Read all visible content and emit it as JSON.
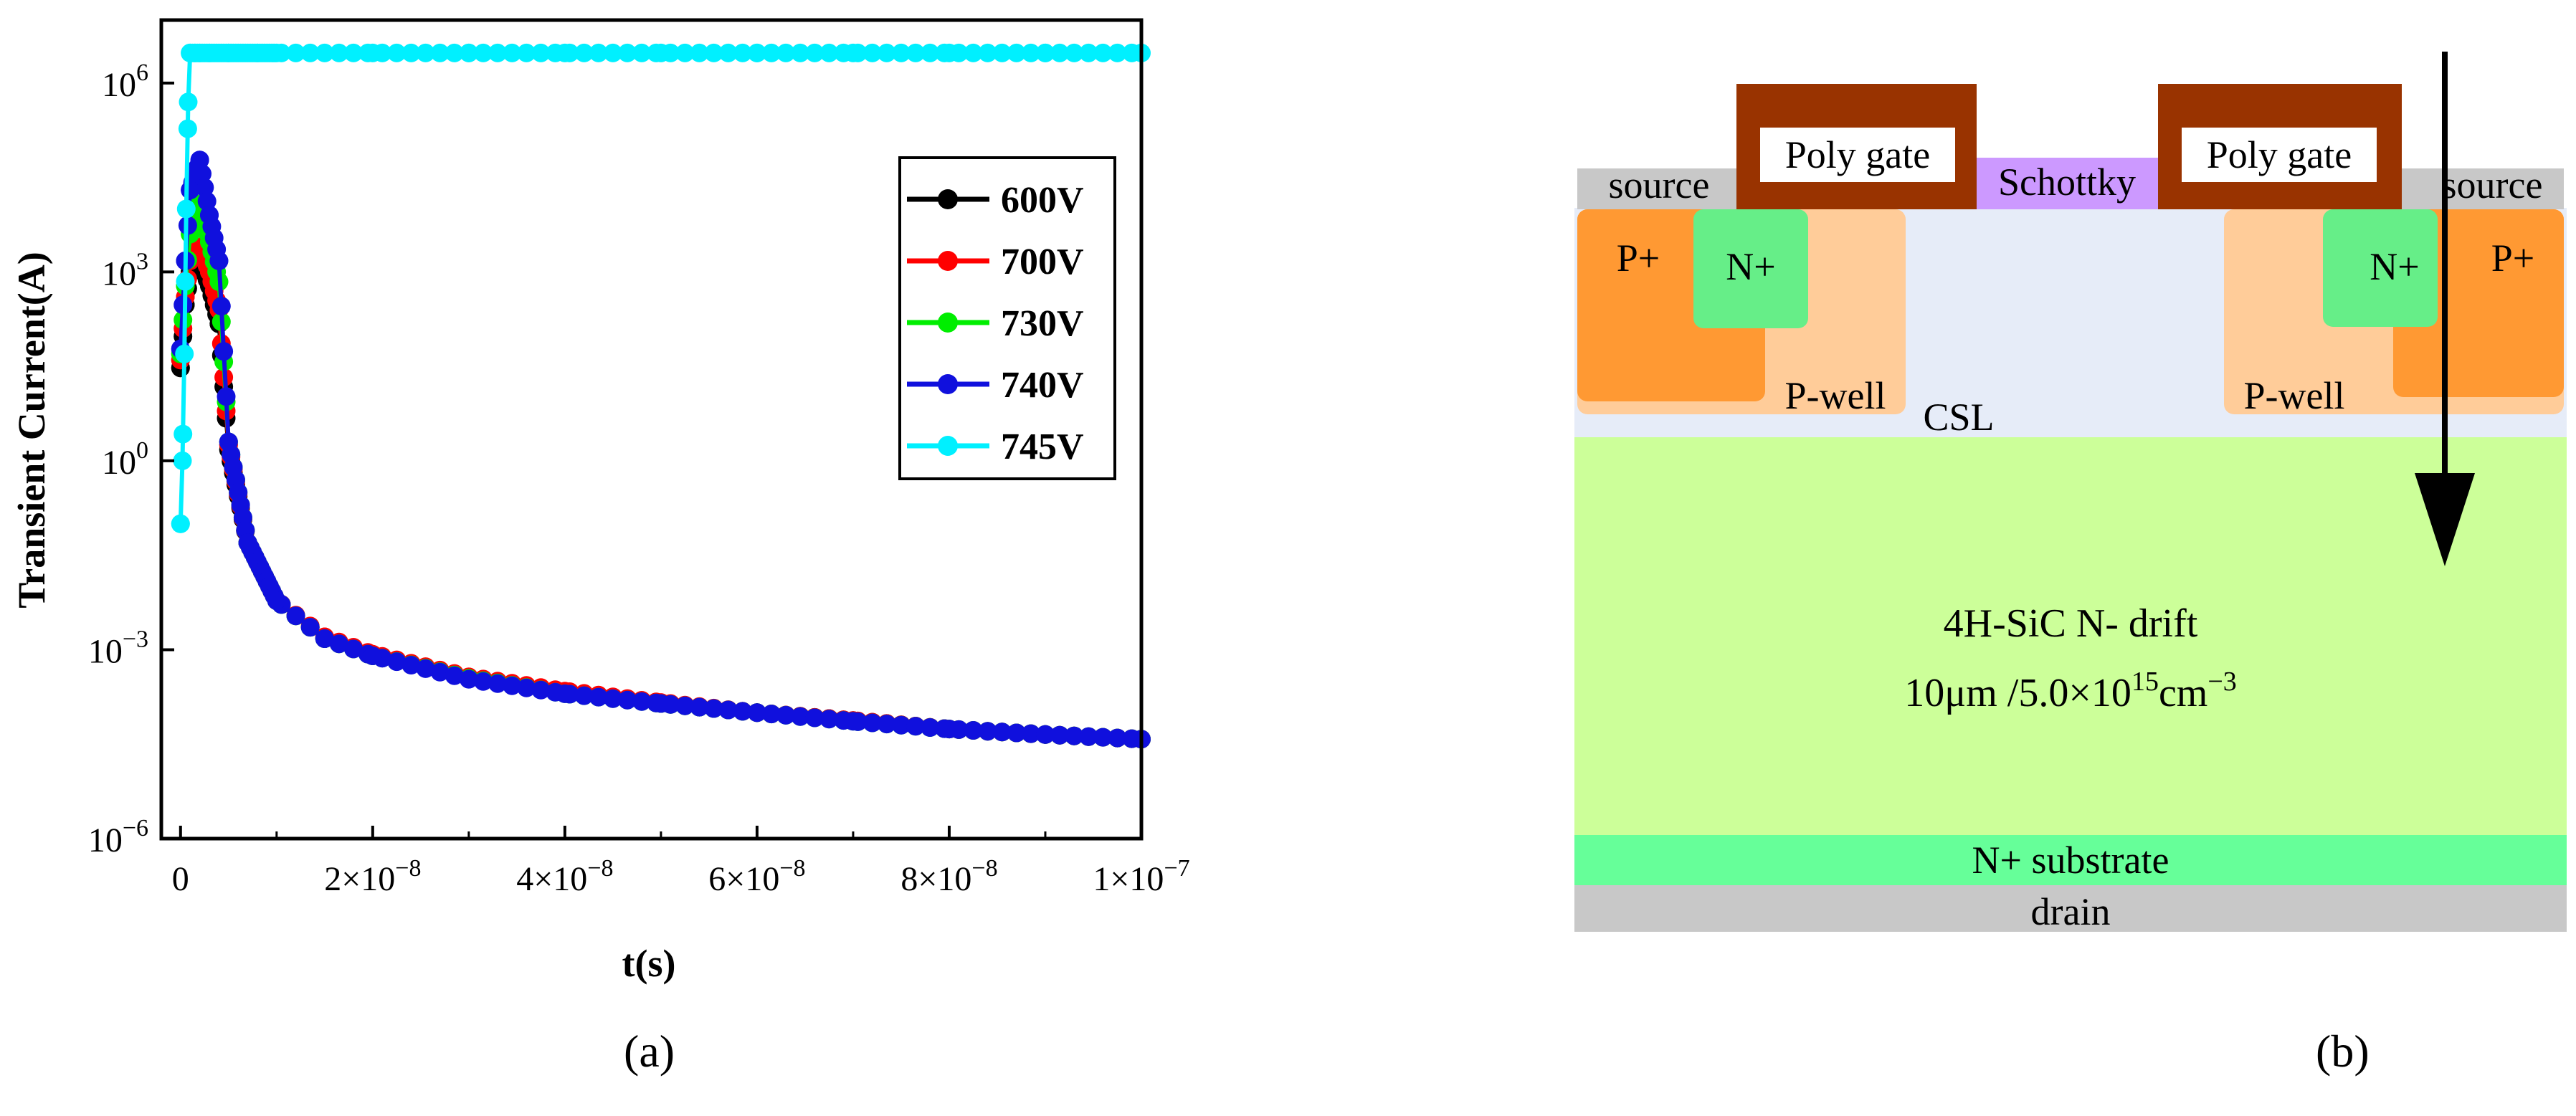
{
  "chart_data": {
    "type": "line",
    "xscale": "linear",
    "yscale": "log",
    "xlim": [
      -2e-09,
      1e-07
    ],
    "ylim": [
      1e-06,
      10000000.0
    ],
    "xlabel": "t(s)",
    "ylabel": "Transient Current(A)",
    "x_ticks": [
      {
        "value": 0,
        "label": "0"
      },
      {
        "value": 2e-08,
        "label": "2×10",
        "exp": "−8"
      },
      {
        "value": 4e-08,
        "label": "4×10",
        "exp": "−8"
      },
      {
        "value": 6e-08,
        "label": "6×10",
        "exp": "−8"
      },
      {
        "value": 8e-08,
        "label": "8×10",
        "exp": "−8"
      },
      {
        "value": 1e-07,
        "label": "1×10",
        "exp": "−7"
      }
    ],
    "y_ticks": [
      {
        "value": 1000000.0,
        "label": "10",
        "exp": "6"
      },
      {
        "value": 1000.0,
        "label": "10",
        "exp": "3"
      },
      {
        "value": 1,
        "label": "10",
        "exp": "0"
      },
      {
        "value": 0.001,
        "label": "10",
        "exp": "−3"
      },
      {
        "value": 1e-06,
        "label": "10",
        "exp": "−6"
      }
    ],
    "legend_position": "top-right",
    "series": [
      {
        "name": "600V",
        "color": "#000000",
        "x": [
          0,
          5e-10,
          1e-09,
          2e-09,
          3e-09,
          4e-09,
          5e-09,
          7e-09,
          1e-08,
          1.5e-08,
          2e-08,
          3e-08,
          4e-08,
          5e-08,
          6e-08,
          7e-08,
          8e-08,
          9e-08,
          1e-07
        ],
        "y": [
          30,
          300,
          1000,
          1500,
          600,
          150,
          1.5,
          0.05,
          0.006,
          0.0015,
          0.0008,
          0.00035,
          0.00021,
          0.00014,
          0.0001,
          7.5e-05,
          5.5e-05,
          4.5e-05,
          3.8e-05
        ]
      },
      {
        "name": "700V",
        "color": "#ff0000",
        "x": [
          0,
          5e-10,
          1e-09,
          2e-09,
          3e-09,
          4e-09,
          5e-09,
          7e-09,
          1e-08,
          1.5e-08,
          2e-08,
          3e-08,
          4e-08,
          5e-08,
          6e-08,
          7e-08,
          8e-08,
          9e-08,
          1e-07
        ],
        "y": [
          40,
          400,
          1500,
          2500,
          1000,
          250,
          1.8,
          0.05,
          0.006,
          0.0016,
          0.00085,
          0.00037,
          0.00022,
          0.000145,
          0.0001,
          7.5e-05,
          5.5e-05,
          4.5e-05,
          3.8e-05
        ]
      },
      {
        "name": "730V",
        "color": "#00ee00",
        "x": [
          0,
          5e-10,
          1e-09,
          2e-09,
          3e-09,
          4e-09,
          5e-09,
          7e-09,
          1e-08,
          1.5e-08,
          2e-08,
          3e-08,
          4e-08,
          5e-08,
          6e-08,
          7e-08,
          8e-08,
          9e-08,
          1e-07
        ],
        "y": [
          50,
          600,
          4000,
          12000,
          3000,
          700,
          2,
          0.05,
          0.006,
          0.0015,
          0.0008,
          0.00035,
          0.0002,
          0.00014,
          0.0001,
          7.3e-05,
          5.5e-05,
          4.5e-05,
          3.8e-05
        ]
      },
      {
        "name": "740V",
        "color": "#1010dd",
        "x": [
          0,
          5e-10,
          1e-09,
          2e-09,
          3e-09,
          4e-09,
          5e-09,
          7e-09,
          1e-08,
          1.5e-08,
          2e-08,
          3e-08,
          4e-08,
          5e-08,
          6e-08,
          7e-08,
          8e-08,
          9e-08,
          1e-07
        ],
        "y": [
          60,
          1500,
          20000,
          60000,
          8000,
          1500,
          2,
          0.05,
          0.006,
          0.0015,
          0.0008,
          0.00034,
          0.0002,
          0.00014,
          0.0001,
          7.3e-05,
          5.5e-05,
          4.5e-05,
          3.8e-05
        ]
      },
      {
        "name": "745V",
        "color": "#00f0ff",
        "x": [
          0,
          2e-10,
          4e-10,
          6e-10,
          8e-10,
          1e-09,
          1.5e-09,
          2e-09,
          3e-09,
          5e-09,
          8e-09,
          1e-08,
          2e-08,
          3e-08,
          4e-08,
          5e-08,
          6e-08,
          7e-08,
          8e-08,
          9e-08,
          1e-07
        ],
        "y": [
          0.1,
          1,
          50,
          10000,
          500000,
          3000000,
          3000000,
          3000000,
          3000000,
          3000000,
          3000000,
          3000000,
          3000000,
          3000000,
          3000000,
          3000000,
          3000000,
          3000000,
          3000000,
          3000000,
          3000000
        ]
      }
    ]
  },
  "diagram": {
    "labels": {
      "source_left": "source",
      "source_right": "source",
      "poly_gate_left": "Poly gate",
      "poly_gate_right": "Poly gate",
      "schottky": "Schottky",
      "p_plus_left": "P+",
      "p_plus_right": "P+",
      "n_plus_left": "N+",
      "n_plus_right": "N+",
      "p_well_left": "P-well",
      "p_well_right": "P-well",
      "csl": "CSL",
      "drift_line1": "4H-SiC N- drift",
      "drift_line2_a": "10μm /5.0×10",
      "drift_line2_exp1": "15",
      "drift_line2_b": "cm",
      "drift_line2_exp2": "−3",
      "substrate": "N+ substrate",
      "drain": "drain"
    },
    "colors": {
      "metal": "#c8c8c8",
      "poly": "#993300",
      "schottky": "#cc99ff",
      "p_plus": "#ff9933",
      "n_plus": "#66ee88",
      "p_well": "#ffcc99",
      "csl": "#e6ecf8",
      "drift": "#ccff99",
      "substrate": "#66ff99"
    }
  },
  "panel_labels": {
    "a": "(a)",
    "b": "(b)"
  }
}
